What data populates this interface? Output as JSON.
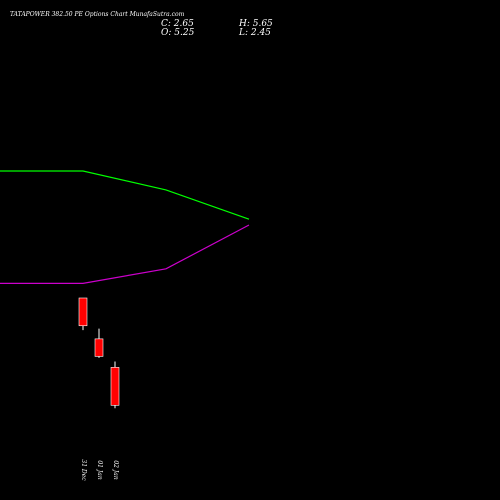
{
  "header": {
    "title": "TATAPOWER 382.50 PE Options Chart MunafaSutra.com",
    "open_label": "O: 5.25",
    "high_label": "H: 5.65",
    "low_label": "L: 2.45",
    "close_label": "C: 2.65"
  },
  "colors": {
    "background": "#000000",
    "text": "#ffffff",
    "bearish_candle": "#ff0000",
    "upper_line": "#00ff00",
    "lower_line": "#cc00cc"
  },
  "chart_data": {
    "type": "candlestick",
    "title": "TATAPOWER 382.50 PE Options Chart MunafaSutra.com",
    "categories": [
      "31 Dec",
      "01 Jan",
      "02 Jan"
    ],
    "candles": [
      {
        "label": "31 Dec",
        "open": 10.0,
        "high": 10.0,
        "low": 7.8,
        "close": 8.1
      },
      {
        "label": "01 Jan",
        "open": 7.2,
        "high": 7.9,
        "low": 5.9,
        "close": 6.0
      },
      {
        "label": "02 Jan",
        "open": 5.25,
        "high": 5.65,
        "low": 2.45,
        "close": 2.65
      }
    ],
    "lines": [
      {
        "color": "#00ff00",
        "x": [
          -5,
          -4,
          -3,
          -2,
          -1,
          0,
          1,
          2
        ],
        "y": [
          18.7,
          18.7,
          18.7,
          18.7,
          18.7,
          18.2,
          17.4,
          15.4
        ]
      },
      {
        "color": "#cc00cc",
        "x": [
          -5,
          -4,
          -3,
          -2,
          -1,
          0,
          1,
          2
        ],
        "y": [
          11.0,
          11.0,
          11.0,
          11.0,
          11.0,
          11.4,
          12.0,
          15.0
        ]
      }
    ],
    "ylim": [
      0,
      26
    ],
    "grid": false,
    "legend": "none"
  }
}
